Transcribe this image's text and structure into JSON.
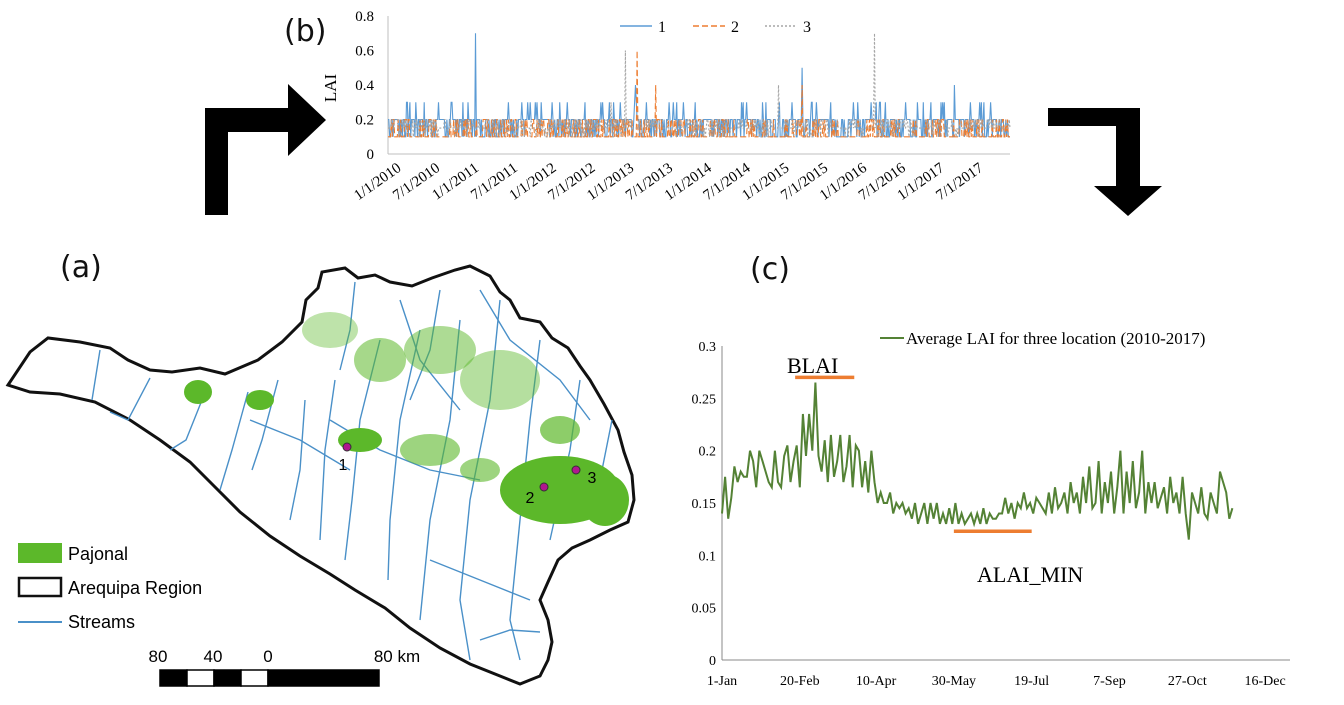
{
  "panels": {
    "a": "(a)",
    "b": "(b)",
    "c": "(c)"
  },
  "colors": {
    "s1": "#5b9bd5",
    "s2": "#ed7d31",
    "s3": "#a5a5a5",
    "avg": "#548235",
    "stream": "#4a90c8",
    "pajonal": "#5cb82a",
    "bar": "#ed7d31",
    "marker": "#b0178e"
  },
  "map": {
    "legend": [
      {
        "key": "pajonal",
        "label": "Pajonal"
      },
      {
        "key": "region",
        "label": "Arequipa Region"
      },
      {
        "key": "streams",
        "label": "Streams"
      }
    ],
    "scale_labels": [
      "80",
      "40",
      "0",
      "80 km"
    ],
    "points": [
      {
        "label": "1"
      },
      {
        "label": "2"
      },
      {
        "label": "3"
      }
    ]
  },
  "chart_data": [
    {
      "id": "b",
      "type": "line",
      "title": "",
      "ylabel": "LAI",
      "xlabel": "",
      "ylim": [
        0,
        0.8
      ],
      "yticks": [
        0,
        0.2,
        0.4,
        0.6,
        0.8
      ],
      "x_tick_labels": [
        "1/1/2010",
        "7/1/2010",
        "1/1/2011",
        "7/1/2011",
        "1/1/2012",
        "7/1/2012",
        "1/1/2013",
        "7/1/2013",
        "1/1/2014",
        "7/1/2014",
        "1/1/2015",
        "7/1/2015",
        "1/1/2016",
        "7/1/2016",
        "1/1/2017",
        "7/1/2017"
      ],
      "x_range": [
        "2010-01-01",
        "2017-12-31"
      ],
      "baseline": {
        "1": 0.2,
        "2": 0.1,
        "3": 0.15
      },
      "legend_position": "top-center",
      "series": [
        {
          "name": "1",
          "style": "solid",
          "peaks": [
            {
              "x": "2011-02-15",
              "y": 0.7
            },
            {
              "x": "2013-03-10",
              "y": 0.4
            },
            {
              "x": "2015-05-01",
              "y": 0.5
            },
            {
              "x": "2017-04-15",
              "y": 0.4
            }
          ]
        },
        {
          "name": "2",
          "style": "dashed",
          "peaks": [
            {
              "x": "2013-03-15",
              "y": 0.6
            },
            {
              "x": "2015-05-01",
              "y": 0.4
            },
            {
              "x": "2013-06-10",
              "y": 0.4
            }
          ]
        },
        {
          "name": "3",
          "style": "dotted",
          "peaks": [
            {
              "x": "2013-01-20",
              "y": 0.6
            },
            {
              "x": "2016-04-05",
              "y": 0.7
            },
            {
              "x": "2012-11-15",
              "y": 0.3
            },
            {
              "x": "2015-01-10",
              "y": 0.4
            }
          ]
        }
      ]
    },
    {
      "id": "c",
      "type": "line",
      "title": "",
      "xlabel": "",
      "ylabel": "",
      "ylim": [
        0,
        0.3
      ],
      "yticks": [
        "0",
        "0.05",
        "0.1",
        "0.15",
        "0.2",
        "0.25",
        "0.3"
      ],
      "x_tick_labels": [
        "1-Jan",
        "20-Feb",
        "10-Apr",
        "30-May",
        "19-Jul",
        "7-Sep",
        "27-Oct",
        "16-Dec"
      ],
      "x_tick_days": [
        1,
        51,
        100,
        150,
        200,
        250,
        300,
        350
      ],
      "legend_position": "top-right",
      "series": [
        {
          "name": "Average LAI for three location (2010-2017)",
          "x_start_day": 1,
          "x_step_days": 2,
          "values": [
            0.14,
            0.175,
            0.135,
            0.155,
            0.185,
            0.17,
            0.18,
            0.175,
            0.175,
            0.2,
            0.19,
            0.165,
            0.2,
            0.19,
            0.18,
            0.17,
            0.165,
            0.2,
            0.17,
            0.165,
            0.195,
            0.205,
            0.17,
            0.19,
            0.205,
            0.165,
            0.235,
            0.195,
            0.235,
            0.2,
            0.265,
            0.195,
            0.18,
            0.21,
            0.17,
            0.215,
            0.175,
            0.19,
            0.215,
            0.17,
            0.185,
            0.215,
            0.165,
            0.205,
            0.2,
            0.165,
            0.19,
            0.16,
            0.2,
            0.17,
            0.15,
            0.16,
            0.15,
            0.15,
            0.16,
            0.14,
            0.15,
            0.145,
            0.15,
            0.14,
            0.145,
            0.135,
            0.15,
            0.13,
            0.14,
            0.15,
            0.13,
            0.15,
            0.135,
            0.15,
            0.13,
            0.14,
            0.13,
            0.145,
            0.13,
            0.15,
            0.13,
            0.14,
            0.13,
            0.135,
            0.14,
            0.13,
            0.14,
            0.13,
            0.145,
            0.13,
            0.14,
            0.135,
            0.135,
            0.14,
            0.14,
            0.155,
            0.14,
            0.15,
            0.135,
            0.15,
            0.145,
            0.16,
            0.145,
            0.15,
            0.14,
            0.155,
            0.15,
            0.145,
            0.14,
            0.16,
            0.14,
            0.165,
            0.145,
            0.15,
            0.16,
            0.14,
            0.17,
            0.15,
            0.16,
            0.14,
            0.175,
            0.15,
            0.185,
            0.145,
            0.15,
            0.19,
            0.14,
            0.17,
            0.15,
            0.18,
            0.14,
            0.165,
            0.2,
            0.14,
            0.18,
            0.15,
            0.19,
            0.145,
            0.16,
            0.2,
            0.14,
            0.17,
            0.15,
            0.17,
            0.145,
            0.155,
            0.165,
            0.14,
            0.175,
            0.15,
            0.16,
            0.14,
            0.175,
            0.14,
            0.115,
            0.16,
            0.15,
            0.14,
            0.165,
            0.14,
            0.135,
            0.16,
            0.15,
            0.14,
            0.18,
            0.17,
            0.16,
            0.135,
            0.145
          ]
        }
      ],
      "annotations": [
        {
          "label": "BLAI",
          "x_from_day": 48,
          "x_to_day": 86,
          "y": 0.27
        },
        {
          "label": "ALAI_MIN",
          "x_from_day": 150,
          "x_to_day": 200,
          "y": 0.123
        }
      ]
    }
  ]
}
